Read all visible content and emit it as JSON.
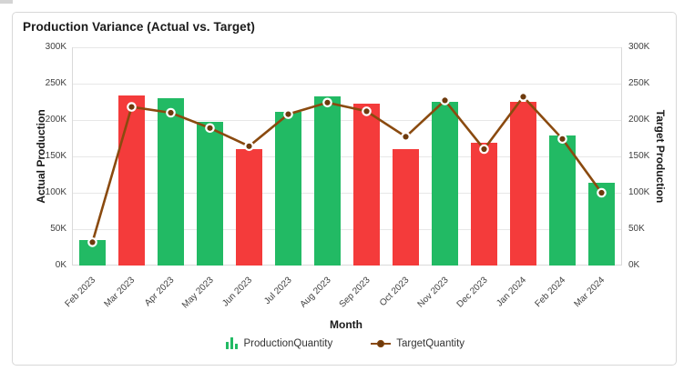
{
  "panel": {
    "title": "Production Variance (Actual vs. Target)"
  },
  "chart_data": {
    "type": "bar",
    "title": "Production Variance (Actual vs. Target)",
    "xlabel": "Month",
    "ylabel_left": "Actual Production",
    "ylabel_right": "Target Production",
    "categories": [
      "Feb 2023",
      "Mar 2023",
      "Apr 2023",
      "May 2023",
      "Jun 2023",
      "Jul 2023",
      "Aug 2023",
      "Sep 2023",
      "Oct 2023",
      "Nov 2023",
      "Dec 2023",
      "Jan 2024",
      "Feb 2024",
      "Mar 2024"
    ],
    "series": [
      {
        "name": "ProductionQuantity",
        "type": "bar",
        "values": [
          35000,
          234000,
          230000,
          197000,
          160000,
          211000,
          233000,
          222000,
          160000,
          225000,
          169000,
          225000,
          179000,
          114000
        ],
        "bar_colors": [
          "#22ba64",
          "#f43b3b",
          "#22ba64",
          "#22ba64",
          "#f43b3b",
          "#22ba64",
          "#22ba64",
          "#f43b3b",
          "#f43b3b",
          "#22ba64",
          "#f43b3b",
          "#f43b3b",
          "#22ba64",
          "#22ba64"
        ]
      },
      {
        "name": "TargetQuantity",
        "type": "line",
        "values": [
          32000,
          218000,
          210000,
          189000,
          164000,
          208000,
          224000,
          212000,
          177000,
          227000,
          160000,
          232000,
          174000,
          100000
        ],
        "color": "#8a4a0f",
        "marker_color": "#6e3a0d"
      }
    ],
    "ylim": [
      0,
      300000
    ],
    "ytick_values": [
      0,
      50000,
      100000,
      150000,
      200000,
      250000,
      300000
    ],
    "ytick_labels": [
      "0K",
      "50K",
      "100K",
      "150K",
      "200K",
      "250K",
      "300K"
    ],
    "grid": true,
    "legend_position": "bottom"
  },
  "legend": {
    "items": [
      {
        "label": "ProductionQuantity",
        "icon": "bar-chart-icon"
      },
      {
        "label": "TargetQuantity",
        "icon": "line-dot-icon"
      }
    ]
  },
  "colors": {
    "bar_green": "#22ba64",
    "bar_red": "#f43b3b",
    "line_brown": "#8a4a0f",
    "marker_brown": "#6e3a0d",
    "gridline": "#e7e7e7",
    "panel_border": "#d8d8d8"
  }
}
